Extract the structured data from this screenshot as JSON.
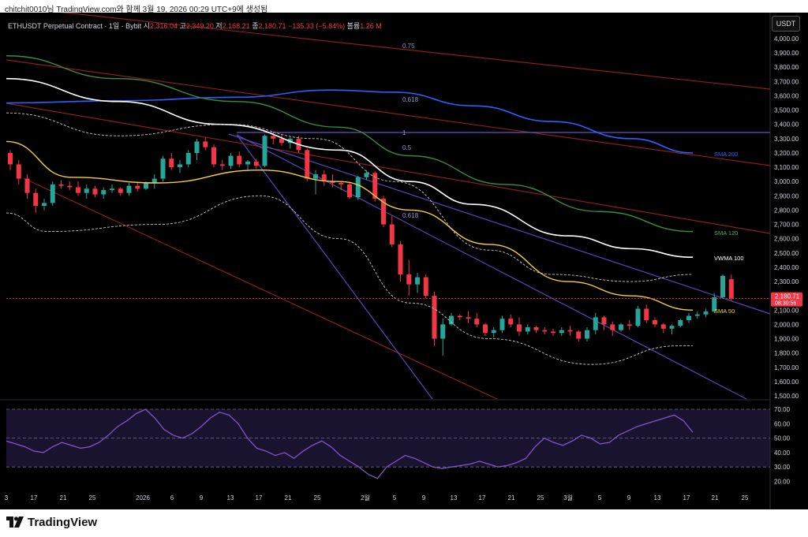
{
  "caption": "chitchit0010님 TradingView.com와 함께 3월 19, 2026 00:29 UTC+9에 생성됨",
  "symbol": "ETHUSDT Perpetual Contract · 1일 · Bybit",
  "ohlc": {
    "open_label": "시",
    "open": "2,316.04",
    "high_label": "고",
    "high": "2,349.20",
    "low_label": "저",
    "low": "2,168.21",
    "close_label": "종",
    "close": "2,180.71",
    "change": "−135.33 (−5.84%)",
    "volume_label": "볼륨",
    "volume": "1.26 M"
  },
  "currency_button": "USDT",
  "price_axis": [
    "4,000.00",
    "3,900.00",
    "3,800.00",
    "3,700.00",
    "3,600.00",
    "3,500.00",
    "3,400.00",
    "3,300.00",
    "3,200.00",
    "3,100.00",
    "3,000.00",
    "2,900.00",
    "2,800.00",
    "2,700.00",
    "2,600.00",
    "2,500.00",
    "2,400.00",
    "2,300.00",
    "2,200.00",
    "2,100.00",
    "2,000.00",
    "1,900.00",
    "1,800.00",
    "1,700.00",
    "1,600.00",
    "1,500.00"
  ],
  "last_price": {
    "value": "2,180.71",
    "countdown": "08:30:56",
    "color": "#f23645"
  },
  "rsi_axis": [
    "70.00",
    "60.00",
    "50.00",
    "40.00",
    "30.00",
    "20.00"
  ],
  "time_axis": [
    "3",
    "17",
    "21",
    "25",
    "2026",
    "6",
    "9",
    "13",
    "17",
    "21",
    "25",
    "2월",
    "5",
    "9",
    "13",
    "17",
    "21",
    "25",
    "3월",
    "5",
    "9",
    "13",
    "17",
    "21",
    "25"
  ],
  "fib_labels": [
    "0.75",
    "0.618",
    "1",
    "0.5",
    "0.618"
  ],
  "indicator_labels": {
    "sma200": "SMA 200",
    "sma120": "SMA 120",
    "vwma100": "VWMA 100",
    "sma50": "SMA 50"
  },
  "colors": {
    "up": "#26a69a",
    "down": "#f23645",
    "sma200": "#2962ff",
    "sma120": "#388e3c",
    "vwma": "#ffffff",
    "sma50": "#f5d033",
    "rsi": "#7e57c2"
  },
  "footer": {
    "brand": "TradingView",
    "logo": "tradingview-logo-icon"
  },
  "chart_data": {
    "type": "candlestick",
    "candles": [
      [
        3200,
        3220,
        3080,
        3120
      ],
      [
        3120,
        3150,
        2980,
        3020
      ],
      [
        3020,
        3050,
        2880,
        2920
      ],
      [
        2920,
        2950,
        2780,
        2830
      ],
      [
        2830,
        2880,
        2800,
        2850
      ],
      [
        2850,
        3000,
        2830,
        2980
      ],
      [
        2980,
        3010,
        2950,
        2970
      ],
      [
        2970,
        3000,
        2940,
        2960
      ],
      [
        2960,
        3000,
        2900,
        2920
      ],
      [
        2920,
        2980,
        2880,
        2950
      ],
      [
        2950,
        2970,
        2890,
        2910
      ],
      [
        2910,
        2960,
        2880,
        2940
      ],
      [
        2940,
        2980,
        2920,
        2950
      ],
      [
        2950,
        2960,
        2900,
        2920
      ],
      [
        2920,
        2990,
        2900,
        2970
      ],
      [
        2970,
        3000,
        2930,
        2950
      ],
      [
        2950,
        3000,
        2940,
        2990
      ],
      [
        2990,
        3050,
        2950,
        3020
      ],
      [
        3020,
        3180,
        3000,
        3160
      ],
      [
        3160,
        3200,
        3080,
        3100
      ],
      [
        3100,
        3150,
        3060,
        3120
      ],
      [
        3120,
        3220,
        3100,
        3200
      ],
      [
        3200,
        3300,
        3150,
        3280
      ],
      [
        3280,
        3310,
        3220,
        3240
      ],
      [
        3240,
        3260,
        3100,
        3120
      ],
      [
        3120,
        3150,
        3080,
        3110
      ],
      [
        3110,
        3200,
        3090,
        3180
      ],
      [
        3180,
        3210,
        3100,
        3120
      ],
      [
        3120,
        3150,
        3080,
        3140
      ],
      [
        3140,
        3160,
        3090,
        3110
      ],
      [
        3110,
        3330,
        3100,
        3320
      ],
      [
        3320,
        3350,
        3260,
        3300
      ],
      [
        3300,
        3330,
        3250,
        3270
      ],
      [
        3270,
        3310,
        3230,
        3300
      ],
      [
        3300,
        3320,
        3200,
        3220
      ],
      [
        3220,
        3230,
        3000,
        3020
      ],
      [
        3020,
        3080,
        2910,
        3050
      ],
      [
        3050,
        3080,
        2970,
        3000
      ],
      [
        3000,
        3050,
        2960,
        2990
      ],
      [
        2990,
        3000,
        2940,
        2980
      ],
      [
        2980,
        3000,
        2880,
        2890
      ],
      [
        2890,
        3040,
        2870,
        3030
      ],
      [
        3030,
        3080,
        3010,
        3060
      ],
      [
        3060,
        3070,
        2860,
        2880
      ],
      [
        2880,
        2900,
        2680,
        2700
      ],
      [
        2700,
        2760,
        2540,
        2560
      ],
      [
        2560,
        2580,
        2300,
        2350
      ],
      [
        2350,
        2450,
        2200,
        2280
      ],
      [
        2280,
        2360,
        2220,
        2330
      ],
      [
        2330,
        2350,
        2180,
        2200
      ],
      [
        2200,
        2230,
        1850,
        1900
      ],
      [
        1900,
        2040,
        1780,
        2000
      ],
      [
        2000,
        2080,
        1990,
        2060
      ],
      [
        2060,
        2070,
        2030,
        2050
      ],
      [
        2050,
        2090,
        2010,
        2040
      ],
      [
        2040,
        2080,
        1980,
        2000
      ],
      [
        2000,
        2010,
        1920,
        1940
      ],
      [
        1940,
        1980,
        1910,
        1960
      ],
      [
        1960,
        2060,
        1940,
        2040
      ],
      [
        2040,
        2070,
        1980,
        2000
      ],
      [
        2000,
        2050,
        1920,
        1950
      ],
      [
        1950,
        2000,
        1930,
        1980
      ],
      [
        1980,
        1990,
        1940,
        1960
      ],
      [
        1960,
        1980,
        1930,
        1950
      ],
      [
        1950,
        1970,
        1920,
        1940
      ],
      [
        1940,
        1980,
        1920,
        1960
      ],
      [
        1960,
        1990,
        1920,
        1950
      ],
      [
        1950,
        1960,
        1880,
        1900
      ],
      [
        1900,
        1980,
        1880,
        1960
      ],
      [
        1960,
        2080,
        1930,
        2050
      ],
      [
        2050,
        2060,
        1960,
        2000
      ],
      [
        2000,
        2020,
        1920,
        1960
      ],
      [
        1960,
        2010,
        1950,
        2000
      ],
      [
        2000,
        2030,
        1960,
        1990
      ],
      [
        1990,
        2130,
        1980,
        2110
      ],
      [
        2110,
        2140,
        2010,
        2030
      ],
      [
        2030,
        2050,
        1980,
        2000
      ],
      [
        2000,
        2010,
        1940,
        1970
      ],
      [
        1970,
        2000,
        1930,
        1990
      ],
      [
        1990,
        2040,
        1980,
        2030
      ],
      [
        2030,
        2080,
        2010,
        2060
      ],
      [
        2060,
        2090,
        2040,
        2070
      ],
      [
        2070,
        2110,
        2050,
        2090
      ],
      [
        2090,
        2220,
        2080,
        2190
      ],
      [
        2190,
        2350,
        2180,
        2340
      ],
      [
        2316,
        2349,
        2168,
        2181
      ]
    ]
  }
}
